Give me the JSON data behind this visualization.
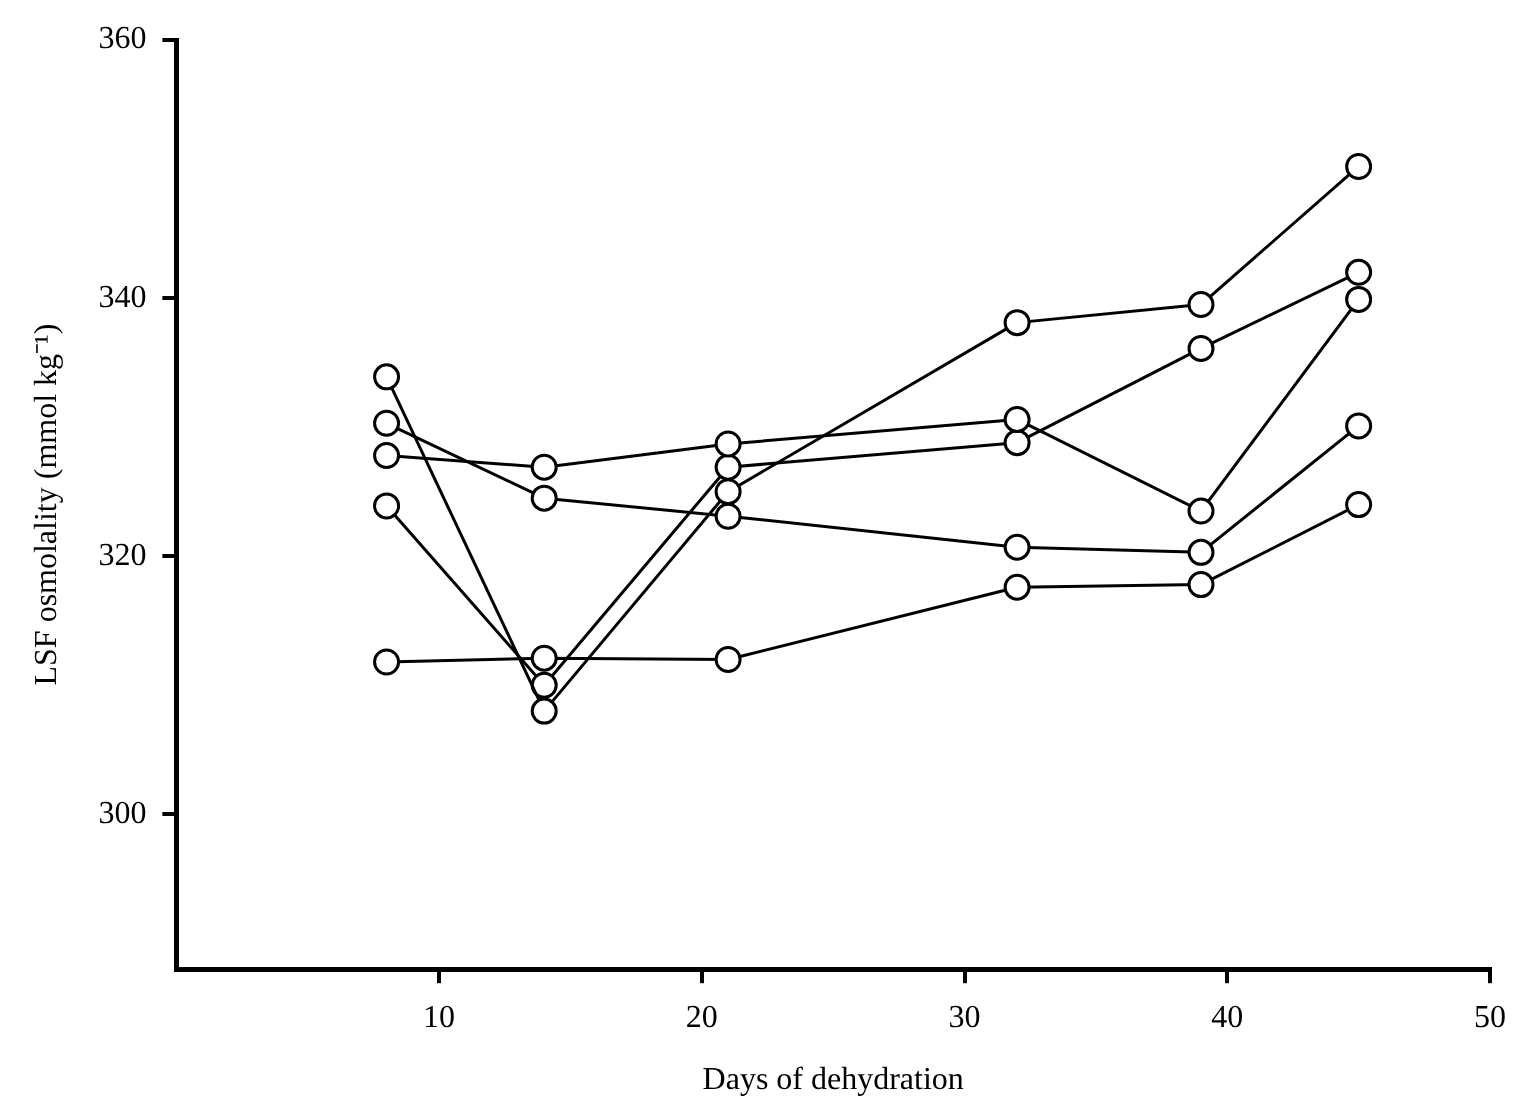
{
  "chart_data": {
    "type": "line",
    "xlabel": "Days of dehydration",
    "ylabel": "LSF osmolality (mmol kg⁻¹)",
    "x": [
      8,
      14,
      21,
      32,
      39,
      45
    ],
    "series": [
      {
        "color": "#000000",
        "values": [
          311.8,
          312.1,
          312,
          317.6,
          317.8,
          324
        ]
      },
      {
        "color": "#000000",
        "values": [
          327.8,
          326.9,
          328.7,
          330.6,
          323.5,
          339.9
        ]
      },
      {
        "color": "#000000",
        "values": [
          330.3,
          324.5,
          323.1,
          320.7,
          320.3,
          330.1
        ]
      },
      {
        "color": "#000000",
        "values": [
          333.9,
          308,
          325,
          338.1,
          339.5,
          350.2
        ]
      },
      {
        "color": "#000000",
        "values": [
          323.9,
          310,
          326.9,
          328.8,
          336.1,
          342
        ]
      }
    ],
    "xlim": [
      0,
      50
    ],
    "xticks": [
      10,
      20,
      30,
      40,
      50
    ],
    "ylim": [
      288,
      360
    ],
    "yticks": [
      300,
      320,
      340,
      360
    ],
    "grid": false,
    "legend": false,
    "marker": "circle",
    "line_style": "solid"
  }
}
